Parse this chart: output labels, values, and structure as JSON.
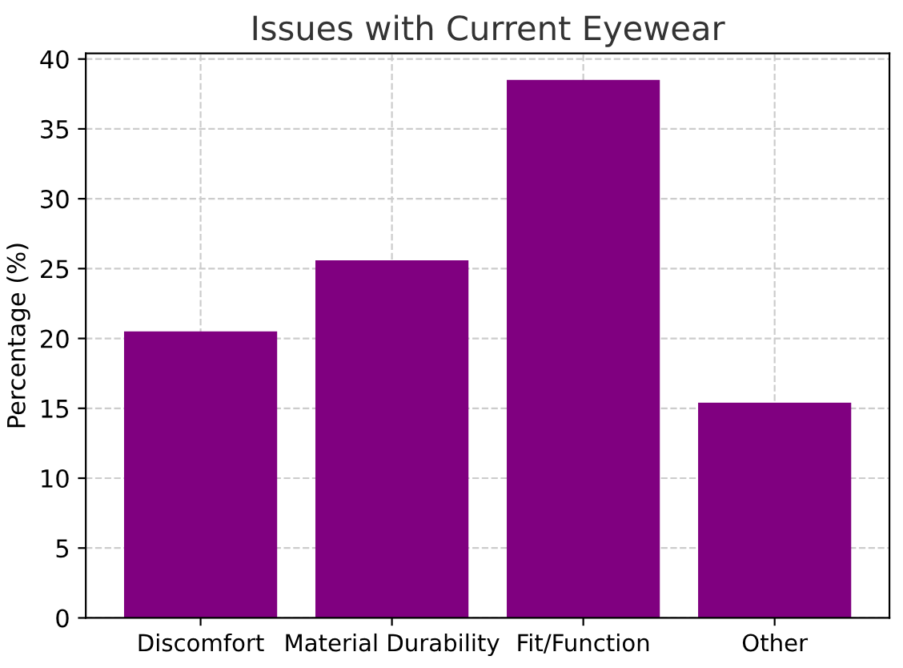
{
  "chart_data": {
    "type": "bar",
    "title": "Issues with Current Eyewear",
    "ylabel": "Percentage (%)",
    "categories": [
      "Discomfort",
      "Material Durability",
      "Fit/Function",
      "Other"
    ],
    "values": [
      20.5,
      25.6,
      38.5,
      15.4
    ],
    "color": "#800080",
    "ylim": [
      0,
      40.4
    ],
    "yticks": [
      0,
      5,
      10,
      15,
      20,
      25,
      30,
      35,
      40
    ],
    "grid": true
  }
}
